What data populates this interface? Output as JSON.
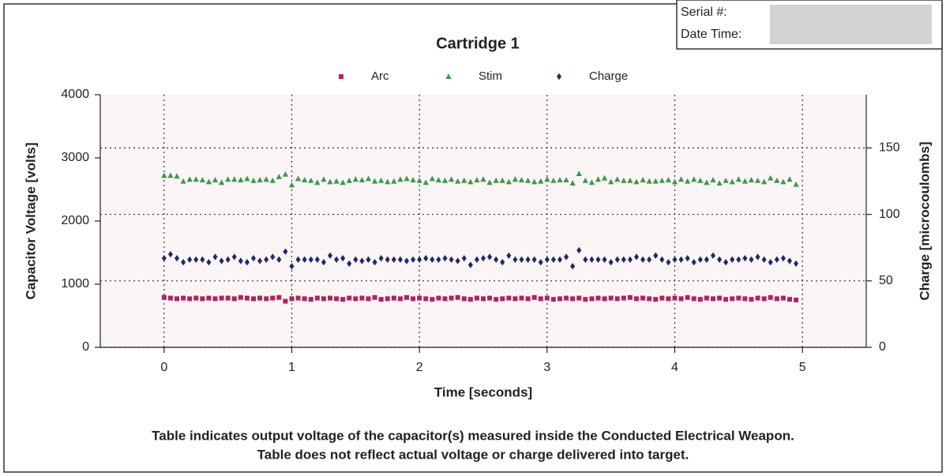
{
  "form": {
    "serial_label": "Serial #:",
    "date_label": "Date Time:"
  },
  "chart_data": {
    "type": "scatter",
    "title": "Cartridge 1",
    "xlabel": "Time [seconds]",
    "ylabel": "Capacitor Voltage [volts]",
    "y2label": "Charge [microcoulombs]",
    "footnote": [
      "Table indicates output voltage of the capacitor(s) measured inside the Conducted Electrical Weapon.",
      "Table does not reflect actual voltage or charge delivered into target."
    ],
    "xlim": [
      -0.5,
      5.5
    ],
    "xticks": [
      0,
      1,
      2,
      3,
      4,
      5
    ],
    "ylim": [
      0,
      4000
    ],
    "yticks": [
      0,
      1000,
      2000,
      3000,
      4000
    ],
    "y2lim": [
      0,
      190
    ],
    "y2ticks": [
      0,
      50,
      100,
      150
    ],
    "grid": true,
    "legend": "top",
    "x": [
      0,
      0.05,
      0.1,
      0.15,
      0.2,
      0.25,
      0.3,
      0.35,
      0.4,
      0.45,
      0.5,
      0.55,
      0.6,
      0.65,
      0.7,
      0.75,
      0.8,
      0.85,
      0.9,
      0.95,
      1,
      1.05,
      1.1,
      1.15,
      1.2,
      1.25,
      1.3,
      1.35,
      1.4,
      1.45,
      1.5,
      1.55,
      1.6,
      1.65,
      1.7,
      1.75,
      1.8,
      1.85,
      1.9,
      1.95,
      2,
      2.05,
      2.1,
      2.15,
      2.2,
      2.25,
      2.3,
      2.35,
      2.4,
      2.45,
      2.5,
      2.55,
      2.6,
      2.65,
      2.7,
      2.75,
      2.8,
      2.85,
      2.9,
      2.95,
      3,
      3.05,
      3.1,
      3.15,
      3.2,
      3.25,
      3.3,
      3.35,
      3.4,
      3.45,
      3.5,
      3.55,
      3.6,
      3.65,
      3.7,
      3.75,
      3.8,
      3.85,
      3.9,
      3.95,
      4,
      4.05,
      4.1,
      4.15,
      4.2,
      4.25,
      4.3,
      4.35,
      4.4,
      4.45,
      4.5,
      4.55,
      4.6,
      4.65,
      4.7,
      4.75,
      4.8,
      4.85,
      4.9,
      4.95
    ],
    "series": [
      {
        "name": "Arc",
        "color": "#b0245a",
        "marker": "square",
        "values": [
          790,
          780,
          770,
          780,
          770,
          780,
          770,
          780,
          770,
          780,
          780,
          770,
          790,
          780,
          770,
          780,
          770,
          780,
          790,
          730,
          770,
          780,
          770,
          760,
          780,
          770,
          780,
          770,
          760,
          780,
          770,
          780,
          770,
          790,
          760,
          770,
          780,
          770,
          790,
          770,
          780,
          770,
          760,
          780,
          770,
          780,
          790,
          770,
          760,
          780,
          770,
          780,
          760,
          770,
          780,
          770,
          780,
          770,
          790,
          770,
          780,
          760,
          770,
          780,
          770,
          780,
          760,
          770,
          780,
          770,
          780,
          770,
          780,
          790,
          770,
          780,
          770,
          760,
          780,
          770,
          780,
          770,
          790,
          770,
          760,
          780,
          770,
          780,
          760,
          770,
          780,
          770,
          760,
          780,
          770,
          790,
          770,
          780,
          760,
          750
        ]
      },
      {
        "name": "Stim",
        "color": "#3a9a4a",
        "marker": "triangle",
        "values": [
          2720,
          2720,
          2710,
          2630,
          2660,
          2660,
          2650,
          2620,
          2650,
          2610,
          2660,
          2660,
          2650,
          2670,
          2640,
          2650,
          2660,
          2640,
          2700,
          2740,
          2570,
          2670,
          2650,
          2640,
          2610,
          2660,
          2620,
          2630,
          2610,
          2640,
          2660,
          2650,
          2670,
          2630,
          2640,
          2620,
          2630,
          2660,
          2670,
          2650,
          2640,
          2610,
          2670,
          2650,
          2640,
          2660,
          2630,
          2640,
          2620,
          2650,
          2660,
          2610,
          2640,
          2640,
          2620,
          2660,
          2650,
          2640,
          2620,
          2630,
          2660,
          2640,
          2650,
          2650,
          2600,
          2750,
          2640,
          2610,
          2660,
          2680,
          2620,
          2660,
          2640,
          2640,
          2620,
          2650,
          2630,
          2630,
          2640,
          2650,
          2620,
          2660,
          2630,
          2660,
          2640,
          2610,
          2650,
          2600,
          2640,
          2620,
          2660,
          2630,
          2650,
          2640,
          2620,
          2680,
          2640,
          2620,
          2660,
          2580
        ]
      },
      {
        "name": "Charge",
        "color": "#1a2a6e",
        "marker": "diamond",
        "axis": "y2",
        "values": [
          67,
          70,
          67,
          64,
          66,
          66,
          66,
          64,
          68,
          65,
          66,
          68,
          65,
          64,
          67,
          65,
          66,
          68,
          66,
          72,
          61,
          66,
          66,
          66,
          66,
          64,
          69,
          66,
          67,
          63,
          66,
          65,
          66,
          64,
          67,
          66,
          66,
          66,
          65,
          66,
          66,
          67,
          66,
          66,
          67,
          66,
          65,
          67,
          62,
          66,
          67,
          68,
          66,
          64,
          69,
          66,
          66,
          66,
          66,
          64,
          66,
          66,
          66,
          68,
          61,
          73,
          66,
          66,
          66,
          66,
          64,
          66,
          66,
          66,
          68,
          66,
          66,
          69,
          66,
          64,
          66,
          66,
          67,
          64,
          66,
          66,
          69,
          66,
          64,
          66,
          66,
          67,
          66,
          68,
          66,
          64,
          66,
          67,
          65,
          63
        ]
      }
    ]
  }
}
